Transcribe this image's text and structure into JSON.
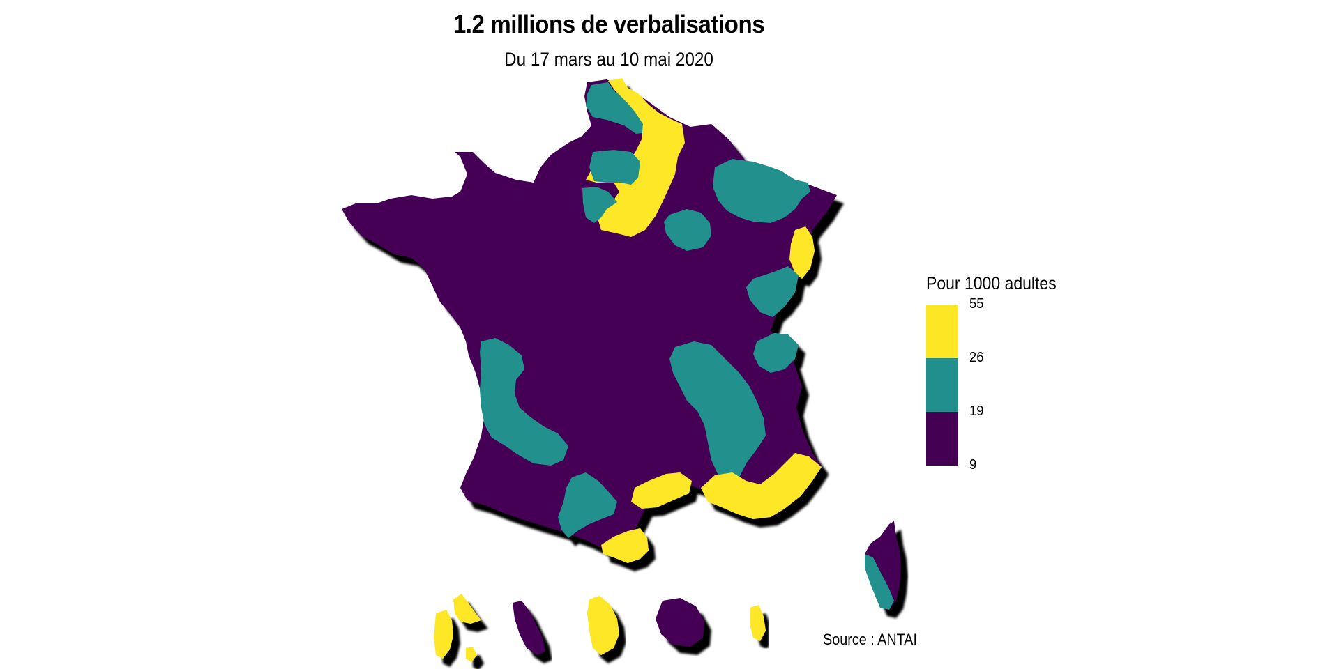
{
  "title": "1.2 millions de verbalisations",
  "subtitle": "Du 17 mars au 10 mai 2020",
  "colors": {
    "low": "#440154",
    "mid": "#21908C",
    "high": "#FDE725",
    "shadow": "#000000",
    "background": "#FFFFFF"
  },
  "legend": {
    "title": "Pour 1000 adultes",
    "breaks": [
      "55",
      "26",
      "19",
      "9"
    ],
    "bins": [
      {
        "from": 9,
        "to": 19,
        "color": "#440154"
      },
      {
        "from": 19,
        "to": 26,
        "color": "#21908C"
      },
      {
        "from": 26,
        "to": 55,
        "color": "#FDE725"
      }
    ]
  },
  "source": "Source : ANTAI"
}
